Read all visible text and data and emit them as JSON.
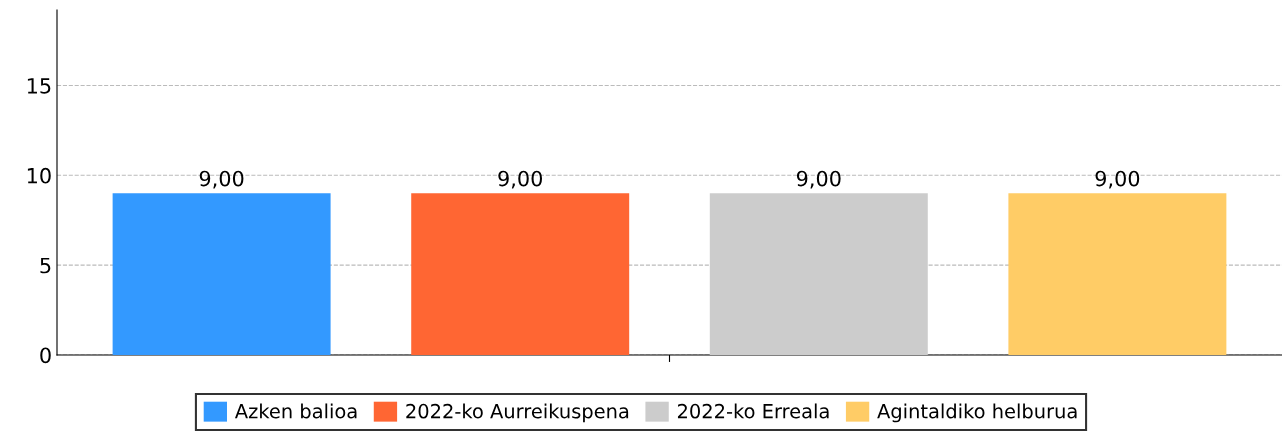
{
  "chart_data": {
    "type": "bar",
    "categories": [
      null
    ],
    "series": [
      {
        "name": "Azken balioa",
        "color": "#3399ff",
        "values": [
          9
        ],
        "value_labels": [
          "9,00"
        ]
      },
      {
        "name": "2022-ko Aurreikuspena",
        "color": "#ff6633",
        "values": [
          9
        ],
        "value_labels": [
          "9,00"
        ]
      },
      {
        "name": "2022-ko Erreala",
        "color": "#cccccc",
        "values": [
          9
        ],
        "value_labels": [
          "9,00"
        ]
      },
      {
        "name": "Agintaldiko helburua",
        "color": "#ffcc66",
        "values": [
          9
        ],
        "value_labels": [
          "9,00"
        ]
      }
    ],
    "ylim": [
      0,
      19.2
    ],
    "yticks": [
      0,
      5,
      10,
      15
    ],
    "grid": "y",
    "legend": "bottom"
  }
}
